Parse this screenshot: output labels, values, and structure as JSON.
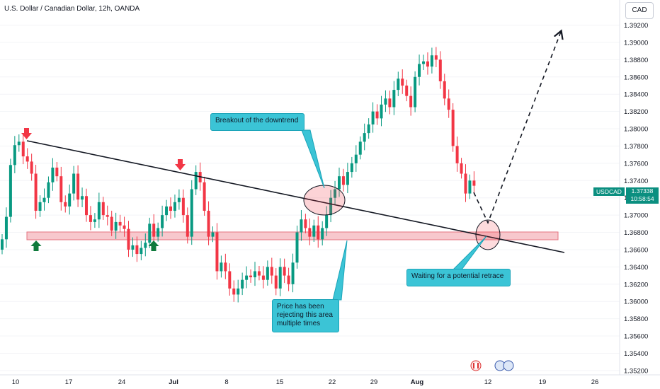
{
  "header": {
    "title": "U.S. Dollar / Canadian Dollar, 12h, OANDA",
    "currency_button": "CAD"
  },
  "price_tags": {
    "symbol": "USDCAD",
    "price": "1.37338",
    "countdown": "10:58:54"
  },
  "annotations": {
    "breakout": "Breakout of the downtrend",
    "rejecting": "Price has been rejecting this area multiple times",
    "retrace": "Waiting for a potential retrace"
  },
  "colors": {
    "up": "#089981",
    "down": "#f23645",
    "trendline": "#131722",
    "zone": "#f7c8cd",
    "callout": "#3bc4d6",
    "arrow_down": "#f23645",
    "arrow_up": "#0f7a3c"
  },
  "chart_data": {
    "type": "candlestick",
    "title": "U.S. Dollar / Canadian Dollar, 12h, OANDA",
    "x_tick_labels": [
      "10",
      "17",
      "24",
      "Jul",
      "8",
      "15",
      "22",
      "29",
      "Aug",
      "12",
      "19",
      "26"
    ],
    "y_ticks": [
      1.352,
      1.354,
      1.356,
      1.358,
      1.36,
      1.362,
      1.364,
      1.366,
      1.368,
      1.37,
      1.372,
      1.374,
      1.376,
      1.378,
      1.38,
      1.382,
      1.384,
      1.386,
      1.388,
      1.39,
      1.392
    ],
    "y_tick_labels": [
      "1.35200",
      "1.35400",
      "1.35600",
      "1.35800",
      "1.36000",
      "1.36200",
      "1.36400",
      "1.36600",
      "1.36800",
      "1.37000",
      "1.37200",
      "1.37400",
      "1.37600",
      "1.37800",
      "1.38000",
      "1.38200",
      "1.38400",
      "1.38600",
      "1.38800",
      "1.39000",
      "1.39200"
    ],
    "ylim": [
      1.3515,
      1.3945
    ],
    "bar_interval": "12h",
    "last_price": 1.37338,
    "closes": [
      1.3672,
      1.3698,
      1.3758,
      1.3781,
      1.3785,
      1.3768,
      1.3762,
      1.3748,
      1.3705,
      1.3715,
      1.372,
      1.3738,
      1.3755,
      1.3745,
      1.3715,
      1.371,
      1.3725,
      1.3748,
      1.3718,
      1.3722,
      1.37,
      1.3692,
      1.3695,
      1.3715,
      1.37,
      1.3698,
      1.3682,
      1.3692,
      1.3688,
      1.3684,
      1.366,
      1.3665,
      1.3655,
      1.3662,
      1.3668,
      1.369,
      1.3675,
      1.3685,
      1.37,
      1.371,
      1.3705,
      1.3715,
      1.372,
      1.37,
      1.3675,
      1.373,
      1.375,
      1.3738,
      1.3705,
      1.3675,
      1.368,
      1.3635,
      1.3645,
      1.3635,
      1.3615,
      1.3608,
      1.3615,
      1.3625,
      1.363,
      1.3628,
      1.3635,
      1.363,
      1.3625,
      1.364,
      1.363,
      1.3615,
      1.364,
      1.363,
      1.362,
      1.3645,
      1.368,
      1.3695,
      1.3685,
      1.3675,
      1.3688,
      1.3672,
      1.3685,
      1.37,
      1.372,
      1.373,
      1.3745,
      1.3735,
      1.375,
      1.376,
      1.377,
      1.3785,
      1.3795,
      1.3805,
      1.382,
      1.3812,
      1.3828,
      1.3835,
      1.3825,
      1.3845,
      1.3858,
      1.385,
      1.3838,
      1.3825,
      1.386,
      1.3875,
      1.3878,
      1.3872,
      1.3885,
      1.388,
      1.3855,
      1.3835,
      1.3822,
      1.378,
      1.376,
      1.3748,
      1.3725,
      1.374,
      1.3734
    ]
  }
}
